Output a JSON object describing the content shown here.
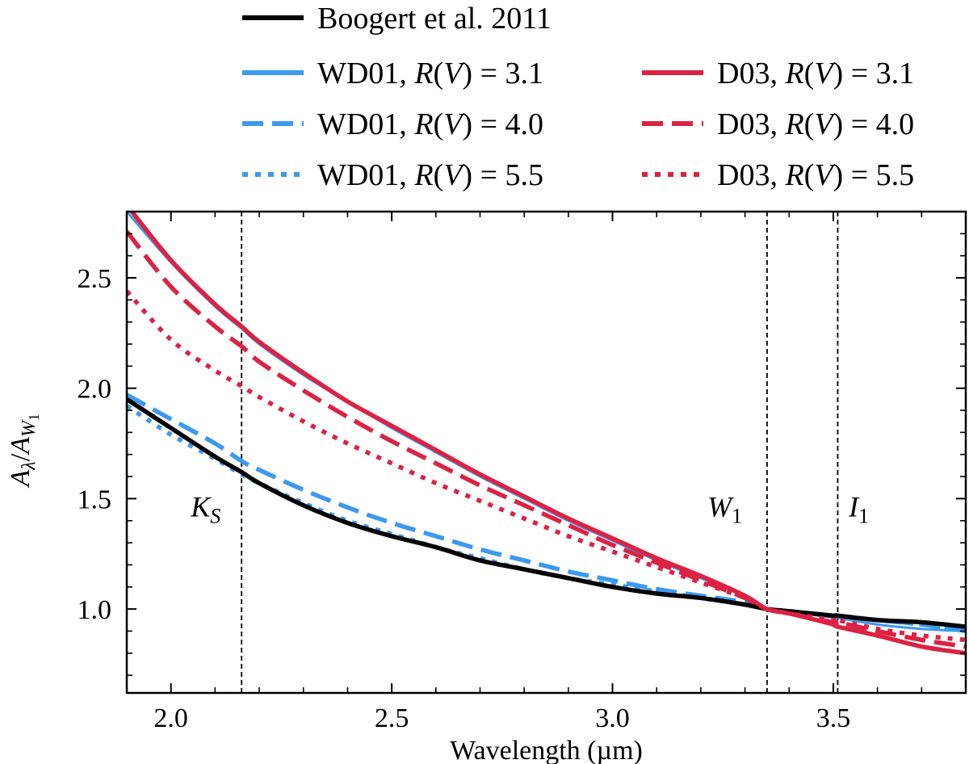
{
  "chart_data": {
    "type": "line",
    "xlabel": "Wavelength (µm)",
    "ylabel": "Aλ/AW1",
    "ylabel_parts": {
      "main": "A",
      "sub1": "λ",
      "slash": "/",
      "main2": "A",
      "sub2": "W",
      "sub2sub": "1"
    },
    "xlim": [
      1.9,
      3.8
    ],
    "ylim": [
      0.62,
      2.8
    ],
    "xticks": [
      2.0,
      2.5,
      3.0,
      3.5
    ],
    "xtick_labels": [
      "2.0",
      "2.5",
      "3.0",
      "3.5"
    ],
    "yticks": [
      1.0,
      1.5,
      2.0,
      2.5
    ],
    "ytick_labels": [
      "1.0",
      "1.5",
      "2.0",
      "2.5"
    ],
    "x": [
      1.9,
      2.0,
      2.1,
      2.16,
      2.2,
      2.3,
      2.4,
      2.5,
      2.6,
      2.7,
      2.8,
      2.9,
      3.0,
      3.1,
      3.2,
      3.3,
      3.35,
      3.4,
      3.5,
      3.51,
      3.6,
      3.7,
      3.8
    ],
    "series": [
      {
        "name": "Boogert et al. 2011",
        "color": "#000000",
        "style": "solid",
        "values": [
          1.95,
          1.82,
          1.69,
          1.62,
          1.57,
          1.47,
          1.39,
          1.33,
          1.28,
          1.22,
          1.18,
          1.14,
          1.1,
          1.07,
          1.05,
          1.02,
          1.0,
          0.99,
          0.97,
          0.97,
          0.95,
          0.94,
          0.92
        ]
      },
      {
        "name": "WD01, R(V) = 3.1",
        "label_prefix": "WD01, ",
        "label_r": "R",
        "label_v": "V",
        "label_eq": " = 3.1",
        "color": "#3b99f0",
        "style": "solid",
        "values": [
          2.8,
          2.57,
          2.37,
          2.27,
          2.2,
          2.06,
          1.94,
          1.82,
          1.71,
          1.6,
          1.5,
          1.4,
          1.31,
          1.22,
          1.14,
          1.06,
          1.0,
          0.99,
          0.96,
          0.96,
          0.93,
          0.91,
          0.9
        ]
      },
      {
        "name": "WD01, R(V) = 4.0",
        "label_prefix": "WD01, ",
        "label_r": "R",
        "label_v": "V",
        "label_eq": " = 4.0",
        "color": "#3b99f0",
        "style": "dashed",
        "values": [
          1.97,
          1.86,
          1.75,
          1.67,
          1.63,
          1.54,
          1.46,
          1.39,
          1.33,
          1.27,
          1.22,
          1.17,
          1.13,
          1.09,
          1.06,
          1.03,
          1.0,
          0.99,
          0.97,
          0.97,
          0.95,
          0.93,
          0.9
        ]
      },
      {
        "name": "WD01, R(V) = 5.5",
        "label_prefix": "WD01, ",
        "label_r": "R",
        "label_v": "V",
        "label_eq": " = 5.5",
        "color": "#3b99f0",
        "style": "dotted",
        "values": [
          1.92,
          1.79,
          1.68,
          1.61,
          1.57,
          1.48,
          1.4,
          1.34,
          1.28,
          1.23,
          1.18,
          1.14,
          1.11,
          1.08,
          1.05,
          1.02,
          1.0,
          0.99,
          0.97,
          0.97,
          0.95,
          0.93,
          0.91
        ]
      },
      {
        "name": "D03, R(V) = 3.1",
        "label_prefix": "D03, ",
        "label_r": "R",
        "label_v": "V",
        "label_eq": " = 3.1",
        "color": "#dc2242",
        "style": "solid",
        "values": [
          2.83,
          2.58,
          2.38,
          2.28,
          2.21,
          2.07,
          1.94,
          1.83,
          1.72,
          1.61,
          1.51,
          1.41,
          1.32,
          1.23,
          1.15,
          1.06,
          1.0,
          0.98,
          0.93,
          0.92,
          0.88,
          0.83,
          0.8
        ]
      },
      {
        "name": "D03, R(V) = 4.0",
        "label_prefix": "D03, ",
        "label_r": "R",
        "label_v": "V",
        "label_eq": " = 4.0",
        "color": "#dc2242",
        "style": "dashed",
        "values": [
          2.71,
          2.46,
          2.28,
          2.19,
          2.12,
          1.99,
          1.87,
          1.76,
          1.66,
          1.56,
          1.47,
          1.38,
          1.29,
          1.21,
          1.13,
          1.05,
          1.0,
          0.98,
          0.94,
          0.94,
          0.9,
          0.86,
          0.83
        ]
      },
      {
        "name": "D03, R(V) = 5.5",
        "label_prefix": "D03, ",
        "label_r": "R",
        "label_v": "V",
        "label_eq": " = 5.5",
        "color": "#dc2242",
        "style": "dotted",
        "values": [
          2.44,
          2.22,
          2.08,
          2.01,
          1.96,
          1.85,
          1.75,
          1.66,
          1.57,
          1.49,
          1.41,
          1.33,
          1.26,
          1.19,
          1.12,
          1.05,
          1.0,
          0.98,
          0.95,
          0.95,
          0.91,
          0.88,
          0.86
        ]
      }
    ],
    "vertical_lines": [
      {
        "x": 2.16,
        "label": "K",
        "sub": "S"
      },
      {
        "x": 3.35,
        "label": "W",
        "sub": "1"
      },
      {
        "x": 3.51,
        "label": "I",
        "sub": "1"
      }
    ],
    "legend_position": "top"
  }
}
